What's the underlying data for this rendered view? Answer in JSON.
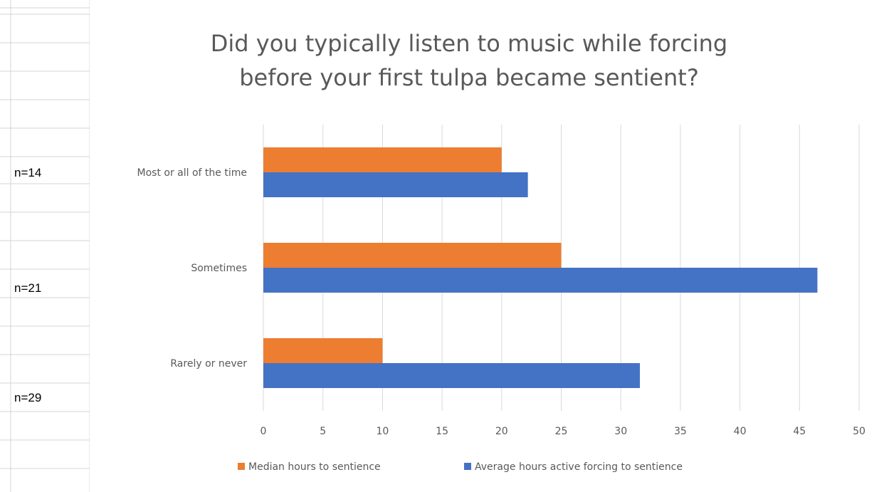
{
  "sheet": {
    "n_labels": [
      "n=14",
      "n=21",
      "n=29"
    ]
  },
  "chart_data": {
    "type": "bar",
    "orientation": "horizontal",
    "title": "Did you typically listen to music while forcing before your first tulpa became sentient?",
    "title_lines": [
      "Did you typically listen to music while forcing",
      "before your first tulpa became sentient?"
    ],
    "categories": [
      "Most or all of the time",
      "Sometimes",
      "Rarely or never"
    ],
    "series": [
      {
        "name": "Median hours to sentience",
        "color": "#ED7D31",
        "values": [
          20,
          25,
          10
        ]
      },
      {
        "name": "Average hours active forcing to sentience",
        "color": "#4472C4",
        "values": [
          22.2,
          46.5,
          31.6
        ]
      }
    ],
    "xlim": [
      0,
      50
    ],
    "xticks": [
      0,
      5,
      10,
      15,
      20,
      25,
      30,
      35,
      40,
      45,
      50
    ],
    "grid": true,
    "legend_position": "bottom"
  }
}
